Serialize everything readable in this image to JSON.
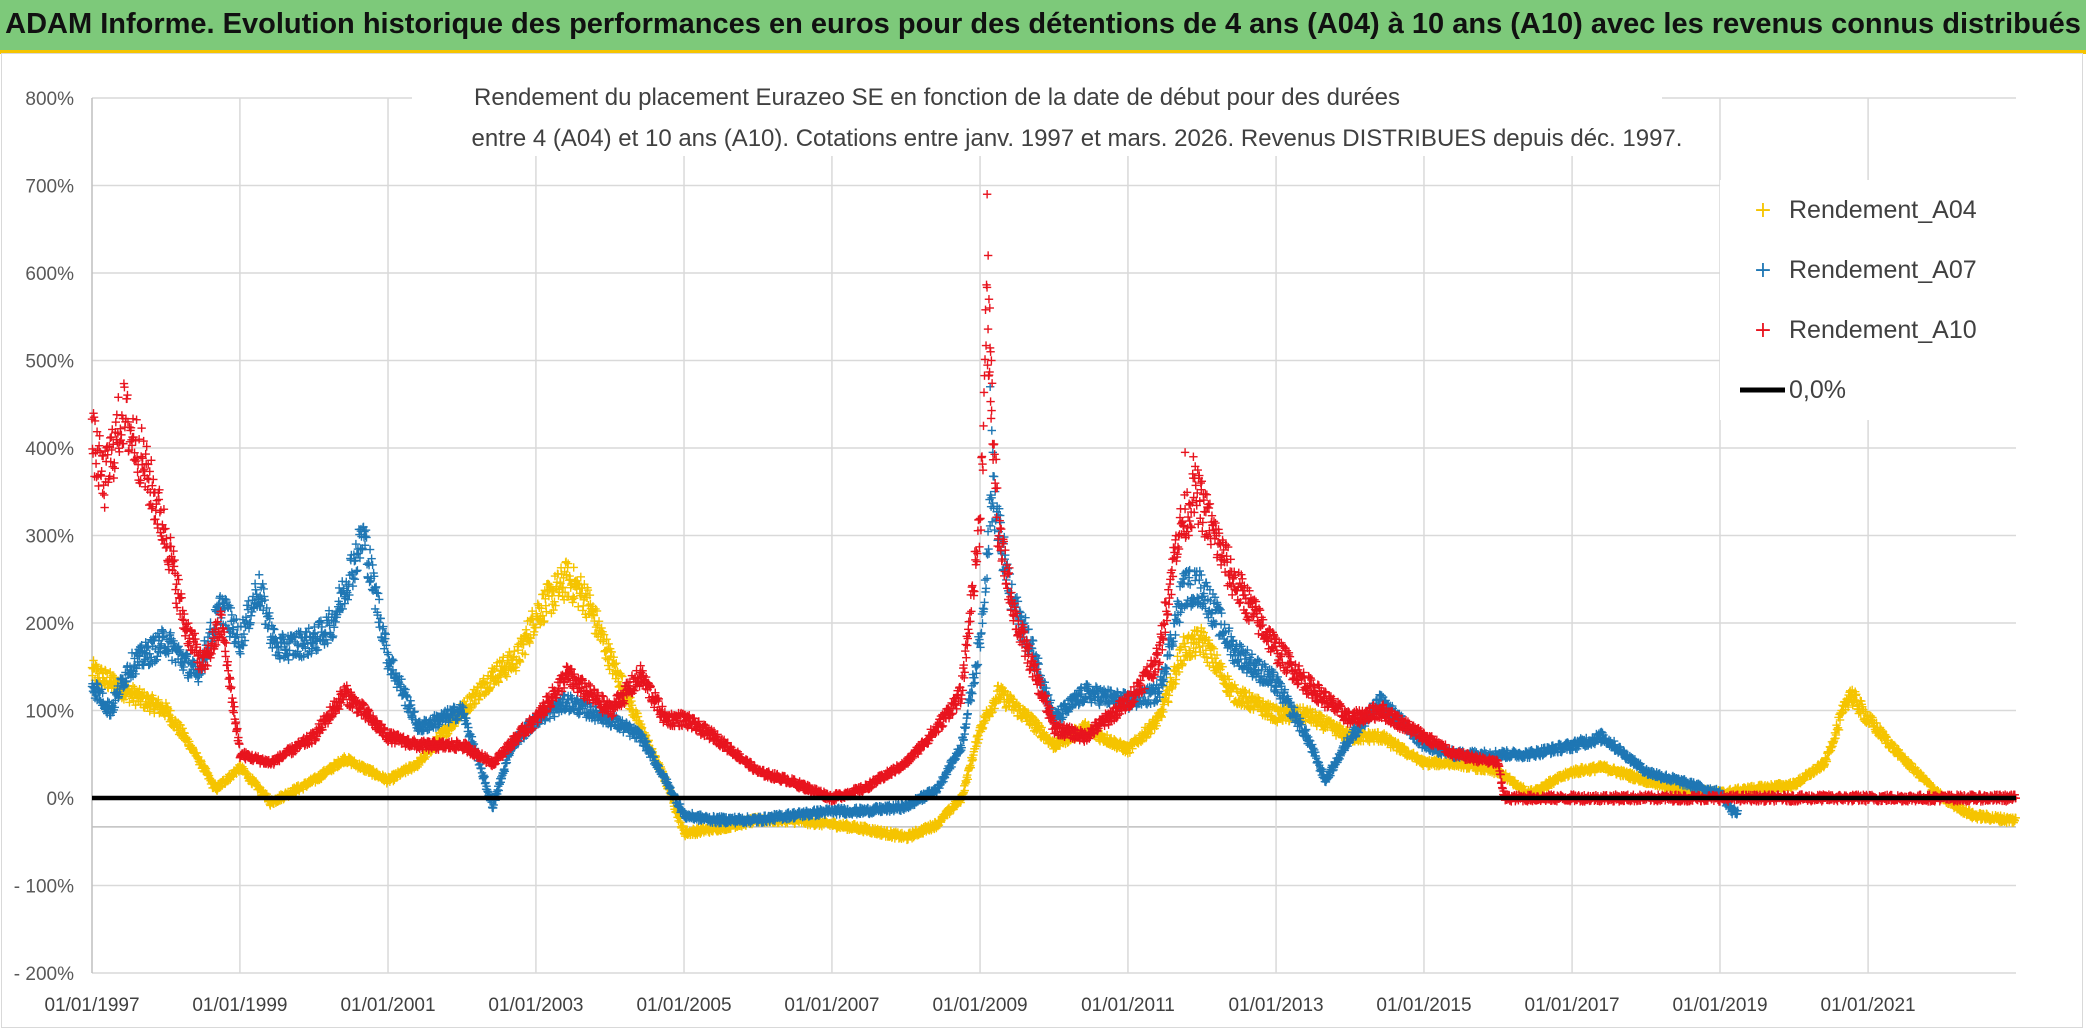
{
  "header": {
    "title": "ADAM Informe. Evolution historique des performances en euros pour des détentions de 4 ans (A04) à 10 ans (A10) avec les revenus connus distribués",
    "background": "#7dc97a",
    "accent": "#f5c400"
  },
  "chart_data": {
    "type": "scatter",
    "title_line1": "Rendement du placement Eurazeo SE en fonction de la date de début pour des durées",
    "title_line2": "entre 4 (A04) et 10 ans (A10). Cotations entre janv. 1997 et mars. 2026. Revenus DISTRIBUES depuis déc. 1997.",
    "xlabel": "",
    "ylabel": "",
    "x_range": [
      "1997-01-01",
      "2023-01-01"
    ],
    "ylim": [
      -200,
      800
    ],
    "y_ticks": [
      800,
      700,
      600,
      500,
      400,
      300,
      200,
      100,
      0,
      -100,
      -200
    ],
    "y_tick_labels": [
      "800%",
      "700%",
      "600%",
      "500%",
      "400%",
      "300%",
      "200%",
      "100%",
      "0%",
      "- 100%",
      "- 200%"
    ],
    "x_tick_labels": [
      "01/01/1997",
      "01/01/1999",
      "01/01/2001",
      "01/01/2003",
      "01/01/2005",
      "01/01/2007",
      "01/01/2009",
      "01/01/2011",
      "01/01/2013",
      "01/01/2015",
      "01/01/2017",
      "01/01/2019",
      "01/01/2021"
    ],
    "grid": true,
    "legend_position": "top-right",
    "legend": [
      "Rendement_A04",
      "Rendement_A07",
      "Rendement_A10",
      "0,0%"
    ],
    "reference_line": {
      "name": "0,0%",
      "value": 0,
      "color": "#000000"
    },
    "series": [
      {
        "name": "Rendement_A04",
        "color": "#f5c400",
        "end": "2022-12-31",
        "points": [
          [
            "1997-01-01",
            145
          ],
          [
            "1997-07-01",
            120
          ],
          [
            "1998-01-01",
            100
          ],
          [
            "1998-05-01",
            60
          ],
          [
            "1998-09-01",
            10
          ],
          [
            "1999-01-01",
            35
          ],
          [
            "1999-06-01",
            -5
          ],
          [
            "2000-01-01",
            20
          ],
          [
            "2000-06-01",
            45
          ],
          [
            "2001-01-01",
            20
          ],
          [
            "2001-06-01",
            40
          ],
          [
            "2002-01-01",
            100
          ],
          [
            "2002-06-01",
            140
          ],
          [
            "2002-10-01",
            160
          ],
          [
            "2003-01-01",
            210
          ],
          [
            "2003-06-01",
            250
          ],
          [
            "2003-09-01",
            230
          ],
          [
            "2004-01-01",
            160
          ],
          [
            "2004-06-01",
            80
          ],
          [
            "2004-10-01",
            20
          ],
          [
            "2005-01-01",
            -40
          ],
          [
            "2005-06-01",
            -35
          ],
          [
            "2006-01-01",
            -25
          ],
          [
            "2006-06-01",
            -25
          ],
          [
            "2007-01-01",
            -30
          ],
          [
            "2007-06-01",
            -35
          ],
          [
            "2008-01-01",
            -45
          ],
          [
            "2008-06-01",
            -30
          ],
          [
            "2008-10-01",
            0
          ],
          [
            "2009-01-01",
            80
          ],
          [
            "2009-04-01",
            120
          ],
          [
            "2009-09-01",
            90
          ],
          [
            "2010-01-01",
            60
          ],
          [
            "2010-06-01",
            80
          ],
          [
            "2011-01-01",
            55
          ],
          [
            "2011-06-01",
            90
          ],
          [
            "2011-10-01",
            170
          ],
          [
            "2012-01-01",
            180
          ],
          [
            "2012-06-01",
            120
          ],
          [
            "2013-01-01",
            95
          ],
          [
            "2013-06-01",
            95
          ],
          [
            "2014-01-01",
            70
          ],
          [
            "2014-06-01",
            70
          ],
          [
            "2015-01-01",
            40
          ],
          [
            "2015-06-01",
            40
          ],
          [
            "2016-01-01",
            30
          ],
          [
            "2016-06-01",
            5
          ],
          [
            "2017-01-01",
            30
          ],
          [
            "2017-06-01",
            35
          ],
          [
            "2018-01-01",
            20
          ],
          [
            "2018-06-01",
            10
          ],
          [
            "2019-01-01",
            5
          ],
          [
            "2019-06-01",
            10
          ],
          [
            "2020-01-01",
            15
          ],
          [
            "2020-06-01",
            40
          ],
          [
            "2020-10-01",
            120
          ],
          [
            "2021-01-01",
            90
          ],
          [
            "2021-06-01",
            50
          ],
          [
            "2022-01-01",
            0
          ],
          [
            "2022-06-01",
            -20
          ],
          [
            "2022-12-01",
            -25
          ]
        ]
      },
      {
        "name": "Rendement_A07",
        "color": "#1f77b4",
        "end": "2019-03-31",
        "points": [
          [
            "1997-01-01",
            130
          ],
          [
            "1997-04-01",
            100
          ],
          [
            "1997-07-01",
            150
          ],
          [
            "1998-01-01",
            180
          ],
          [
            "1998-06-01",
            140
          ],
          [
            "1998-10-01",
            220
          ],
          [
            "1999-01-01",
            180
          ],
          [
            "1999-04-01",
            240
          ],
          [
            "1999-07-01",
            170
          ],
          [
            "2000-01-01",
            180
          ],
          [
            "2000-04-01",
            200
          ],
          [
            "2000-09-01",
            300
          ],
          [
            "2001-01-01",
            160
          ],
          [
            "2001-06-01",
            80
          ],
          [
            "2002-01-01",
            100
          ],
          [
            "2002-06-01",
            -10
          ],
          [
            "2002-09-01",
            60
          ],
          [
            "2003-01-01",
            90
          ],
          [
            "2003-06-01",
            110
          ],
          [
            "2004-01-01",
            90
          ],
          [
            "2004-06-01",
            70
          ],
          [
            "2004-10-01",
            20
          ],
          [
            "2005-01-01",
            -20
          ],
          [
            "2005-06-01",
            -25
          ],
          [
            "2006-01-01",
            -25
          ],
          [
            "2006-06-01",
            -20
          ],
          [
            "2007-01-01",
            -15
          ],
          [
            "2007-06-01",
            -15
          ],
          [
            "2008-01-01",
            -10
          ],
          [
            "2008-06-01",
            10
          ],
          [
            "2008-10-01",
            60
          ],
          [
            "2009-01-01",
            180
          ],
          [
            "2009-03-01",
            350
          ],
          [
            "2009-06-01",
            230
          ],
          [
            "2009-10-01",
            160
          ],
          [
            "2010-01-01",
            90
          ],
          [
            "2010-06-01",
            120
          ],
          [
            "2011-01-01",
            110
          ],
          [
            "2011-06-01",
            120
          ],
          [
            "2011-10-01",
            240
          ],
          [
            "2012-01-01",
            240
          ],
          [
            "2012-06-01",
            170
          ],
          [
            "2013-01-01",
            130
          ],
          [
            "2013-06-01",
            70
          ],
          [
            "2013-09-01",
            20
          ],
          [
            "2014-01-01",
            70
          ],
          [
            "2014-06-01",
            110
          ],
          [
            "2015-01-01",
            60
          ],
          [
            "2015-06-01",
            50
          ],
          [
            "2016-01-01",
            50
          ],
          [
            "2016-06-01",
            50
          ],
          [
            "2017-01-01",
            60
          ],
          [
            "2017-06-01",
            70
          ],
          [
            "2018-01-01",
            30
          ],
          [
            "2018-06-01",
            20
          ],
          [
            "2019-01-01",
            5
          ],
          [
            "2019-03-01",
            -15
          ]
        ]
      },
      {
        "name": "Rendement_A10",
        "color": "#e8141e",
        "end": "2022-12-31",
        "points": [
          [
            "1997-01-01",
            410
          ],
          [
            "1997-03-01",
            360
          ],
          [
            "1997-06-01",
            440
          ],
          [
            "1997-09-01",
            390
          ],
          [
            "1998-01-01",
            300
          ],
          [
            "1998-04-01",
            200
          ],
          [
            "1998-07-01",
            150
          ],
          [
            "1998-10-01",
            200
          ],
          [
            "1999-01-01",
            50
          ],
          [
            "1999-06-01",
            40
          ],
          [
            "2000-01-01",
            70
          ],
          [
            "2000-06-01",
            120
          ],
          [
            "2001-01-01",
            70
          ],
          [
            "2001-06-01",
            60
          ],
          [
            "2002-01-01",
            60
          ],
          [
            "2002-06-01",
            40
          ],
          [
            "2002-10-01",
            70
          ],
          [
            "2003-01-01",
            90
          ],
          [
            "2003-06-01",
            140
          ],
          [
            "2004-01-01",
            100
          ],
          [
            "2004-06-01",
            140
          ],
          [
            "2004-10-01",
            90
          ],
          [
            "2005-01-01",
            90
          ],
          [
            "2005-06-01",
            70
          ],
          [
            "2006-01-01",
            30
          ],
          [
            "2006-06-01",
            20
          ],
          [
            "2007-01-01",
            0
          ],
          [
            "2007-06-01",
            10
          ],
          [
            "2008-01-01",
            40
          ],
          [
            "2008-06-01",
            80
          ],
          [
            "2008-10-01",
            120
          ],
          [
            "2009-01-01",
            320
          ],
          [
            "2009-02-01",
            550
          ],
          [
            "2009-04-01",
            300
          ],
          [
            "2009-07-01",
            200
          ],
          [
            "2009-10-01",
            140
          ],
          [
            "2010-01-01",
            80
          ],
          [
            "2010-06-01",
            70
          ],
          [
            "2011-01-01",
            110
          ],
          [
            "2011-06-01",
            160
          ],
          [
            "2011-09-01",
            300
          ],
          [
            "2011-12-01",
            350
          ],
          [
            "2012-06-01",
            250
          ],
          [
            "2013-01-01",
            170
          ],
          [
            "2013-06-01",
            130
          ],
          [
            "2014-01-01",
            90
          ],
          [
            "2014-06-01",
            100
          ],
          [
            "2015-01-01",
            70
          ],
          [
            "2015-06-01",
            50
          ],
          [
            "2016-01-01",
            40
          ],
          [
            "2016-02-01",
            0
          ],
          [
            "2022-12-01",
            0
          ]
        ]
      }
    ]
  }
}
